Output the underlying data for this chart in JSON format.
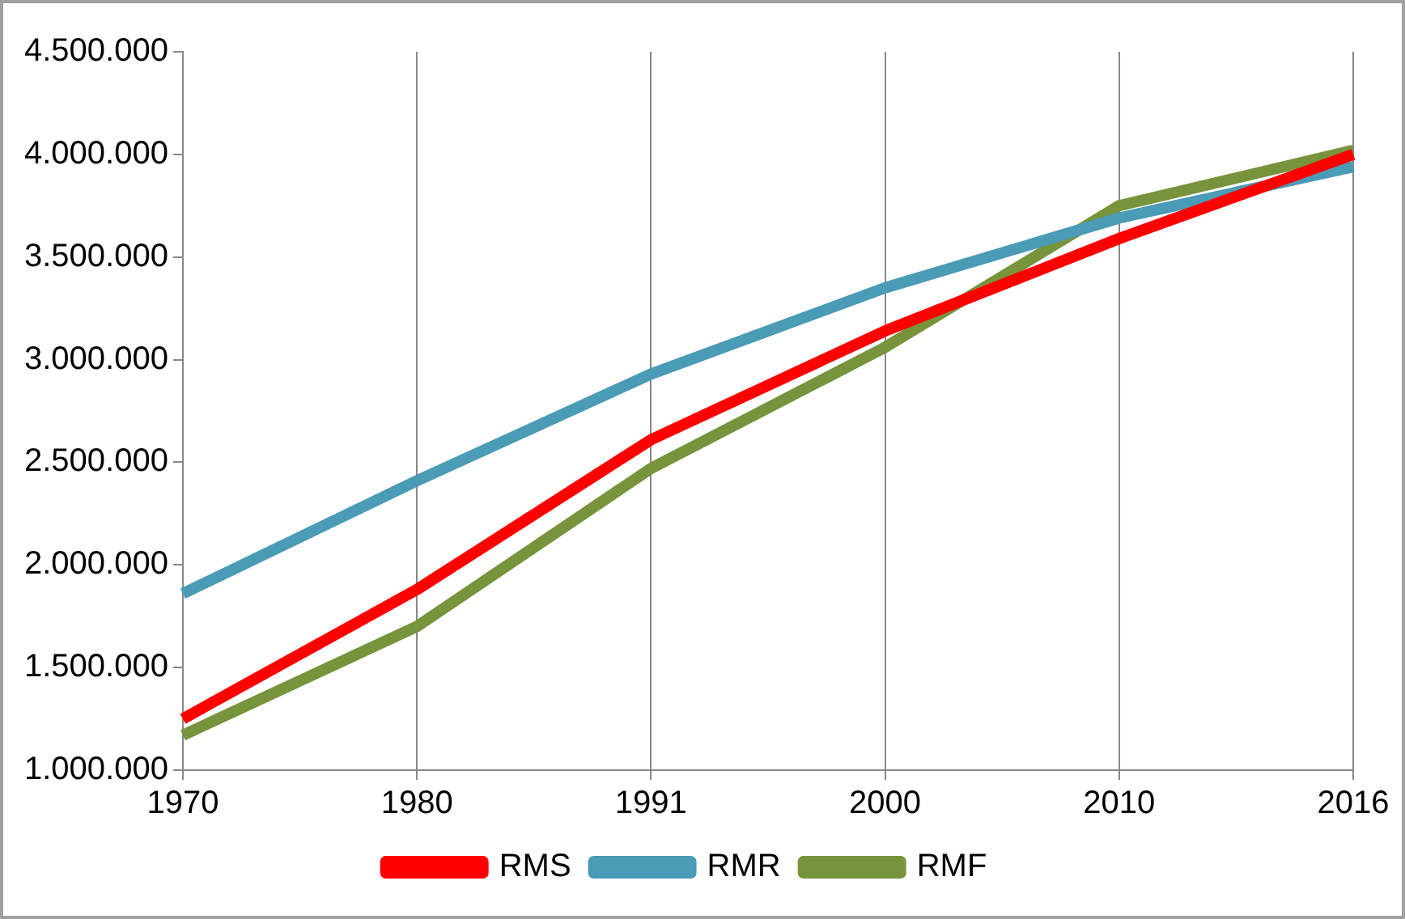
{
  "chart_data": {
    "type": "line",
    "categories": [
      "1970",
      "1980",
      "1991",
      "2000",
      "2010",
      "2016"
    ],
    "series": [
      {
        "name": "RMS",
        "color": "#ff0000",
        "values": [
          1250000,
          1880000,
          2610000,
          3140000,
          3590000,
          4000000
        ]
      },
      {
        "name": "RMR",
        "color": "#4a9bb5",
        "values": [
          1860000,
          2410000,
          2930000,
          3350000,
          3690000,
          3940000
        ]
      },
      {
        "name": "RMF",
        "color": "#77933c",
        "values": [
          1170000,
          1700000,
          2470000,
          3060000,
          3750000,
          4020000
        ]
      }
    ],
    "ylim": [
      1000000,
      4500000
    ],
    "yticks": [
      {
        "value": 1000000,
        "label": "1.000.000"
      },
      {
        "value": 1500000,
        "label": "1.500.000"
      },
      {
        "value": 2000000,
        "label": "2.000.000"
      },
      {
        "value": 2500000,
        "label": "2.500.000"
      },
      {
        "value": 3000000,
        "label": "3.000.000"
      },
      {
        "value": 3500000,
        "label": "3.500.000"
      },
      {
        "value": 4000000,
        "label": "4.000.000"
      },
      {
        "value": 4500000,
        "label": "4.500.000"
      }
    ],
    "grid": "x",
    "legend": "bottom",
    "marker": "none",
    "line_style": "solid"
  }
}
